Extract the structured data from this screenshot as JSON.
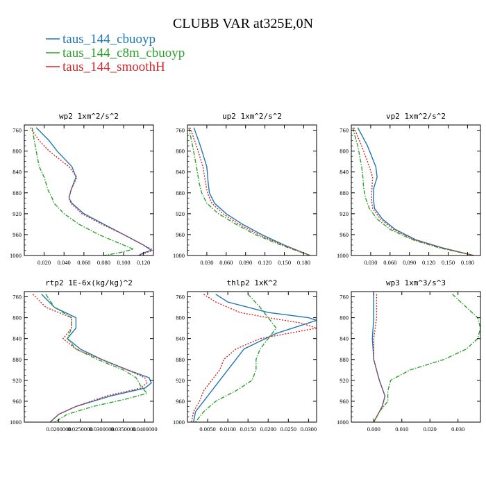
{
  "figure": {
    "title": "CLUBB VAR at325E,0N",
    "legend": [
      {
        "name": "taus_144_cbuoyp",
        "color": "#1f77b4",
        "dash": "solid"
      },
      {
        "name": "taus_144_c8m_cbuoyp",
        "color": "#2ca02c",
        "dash": "dashdot"
      },
      {
        "name": "taus_144_smoothH",
        "color": "#d62728",
        "dash": "dot"
      }
    ]
  },
  "chart_data": [
    {
      "type": "line",
      "title": "wp2  1xm^2/s^2",
      "xlim": [
        0.0,
        0.13
      ],
      "ylim": [
        750,
        1000
      ],
      "y_inverted": true,
      "xticks": [
        0.02,
        0.04,
        0.06,
        0.08,
        0.1,
        0.12
      ],
      "xticklabels": [
        "0.020",
        "0.040",
        "0.060",
        "0.080",
        "0.100",
        "0.120"
      ],
      "yticks": [
        760,
        800,
        840,
        880,
        920,
        960,
        1000
      ],
      "series": [
        {
          "name": "taus_144_cbuoyp",
          "y": [
            755,
            780,
            800,
            830,
            850,
            875,
            890,
            900,
            920,
            940,
            960,
            980,
            990,
            995,
            1000
          ],
          "x": [
            0.012,
            0.025,
            0.033,
            0.048,
            0.052,
            0.047,
            0.045,
            0.048,
            0.06,
            0.08,
            0.1,
            0.12,
            0.128,
            0.12,
            0.115
          ]
        },
        {
          "name": "taus_144_c8m_cbuoyp",
          "y": [
            755,
            780,
            800,
            830,
            850,
            875,
            890,
            900,
            920,
            940,
            960,
            980,
            988,
            995,
            1000
          ],
          "x": [
            0.008,
            0.01,
            0.012,
            0.015,
            0.02,
            0.024,
            0.028,
            0.03,
            0.04,
            0.055,
            0.075,
            0.1,
            0.11,
            0.095,
            0.08
          ]
        },
        {
          "name": "taus_144_smoothH",
          "y": [
            755,
            780,
            800,
            830,
            850,
            875,
            890,
            900,
            920,
            940,
            960,
            980,
            990,
            995,
            1000
          ],
          "x": [
            0.006,
            0.015,
            0.025,
            0.045,
            0.053,
            0.047,
            0.045,
            0.047,
            0.058,
            0.078,
            0.1,
            0.12,
            0.13,
            0.122,
            0.115
          ]
        }
      ]
    },
    {
      "type": "line",
      "title": "up2  1xm^2/s^2",
      "xlim": [
        0.0,
        0.2
      ],
      "ylim": [
        750,
        1000
      ],
      "y_inverted": true,
      "xticks": [
        0.03,
        0.06,
        0.09,
        0.12,
        0.15,
        0.18
      ],
      "xticklabels": [
        "0.030",
        "0.060",
        "0.090",
        "0.120",
        "0.150",
        "0.180"
      ],
      "yticks": [
        760,
        800,
        840,
        880,
        920,
        960,
        1000
      ],
      "series": [
        {
          "name": "taus_144_cbuoyp",
          "y": [
            755,
            790,
            830,
            860,
            880,
            900,
            920,
            940,
            960,
            980,
            1000
          ],
          "x": [
            0.01,
            0.02,
            0.03,
            0.032,
            0.034,
            0.042,
            0.06,
            0.085,
            0.115,
            0.15,
            0.19
          ]
        },
        {
          "name": "taus_144_c8m_cbuoyp",
          "y": [
            755,
            790,
            830,
            860,
            880,
            900,
            920,
            940,
            960,
            980,
            1000
          ],
          "x": [
            0.002,
            0.008,
            0.014,
            0.018,
            0.022,
            0.03,
            0.048,
            0.075,
            0.105,
            0.145,
            0.19
          ]
        },
        {
          "name": "taus_144_smoothH",
          "y": [
            755,
            790,
            830,
            860,
            880,
            900,
            920,
            940,
            960,
            980,
            1000
          ],
          "x": [
            0.004,
            0.014,
            0.024,
            0.028,
            0.031,
            0.038,
            0.055,
            0.08,
            0.11,
            0.148,
            0.19
          ]
        }
      ]
    },
    {
      "type": "line",
      "title": "vp2  1xm^2/s^2",
      "xlim": [
        0.0,
        0.2
      ],
      "ylim": [
        750,
        1000
      ],
      "y_inverted": true,
      "xticks": [
        0.03,
        0.06,
        0.09,
        0.12,
        0.15,
        0.18
      ],
      "xticklabels": [
        "0.030",
        "0.060",
        "0.090",
        "0.120",
        "0.150",
        "0.180"
      ],
      "yticks": [
        760,
        800,
        840,
        880,
        920,
        960,
        1000
      ],
      "series": [
        {
          "name": "taus_144_cbuoyp",
          "y": [
            755,
            790,
            830,
            850,
            870,
            890,
            910,
            930,
            950,
            970,
            985,
            1000
          ],
          "x": [
            0.01,
            0.025,
            0.038,
            0.04,
            0.035,
            0.034,
            0.036,
            0.048,
            0.068,
            0.1,
            0.14,
            0.19
          ]
        },
        {
          "name": "taus_144_c8m_cbuoyp",
          "y": [
            755,
            790,
            830,
            850,
            870,
            890,
            910,
            930,
            950,
            970,
            985,
            1000
          ],
          "x": [
            0.002,
            0.01,
            0.016,
            0.018,
            0.019,
            0.022,
            0.028,
            0.04,
            0.06,
            0.095,
            0.135,
            0.19
          ]
        },
        {
          "name": "taus_144_smoothH",
          "y": [
            755,
            790,
            830,
            850,
            870,
            890,
            910,
            930,
            950,
            970,
            985,
            1000
          ],
          "x": [
            0.004,
            0.016,
            0.028,
            0.033,
            0.032,
            0.031,
            0.033,
            0.045,
            0.065,
            0.098,
            0.138,
            0.19
          ]
        }
      ]
    },
    {
      "type": "line",
      "title": "rtp2  1E-6x(kg/kg)^2",
      "xlim": [
        0.012,
        0.042
      ],
      "ylim": [
        750,
        1000
      ],
      "y_inverted": true,
      "xticks": [
        0.02,
        0.025,
        0.03,
        0.035,
        0.04
      ],
      "xticklabels": [
        "0.0200000",
        "0.0250000",
        "0.0300000",
        "0.0350000",
        "0.0400000"
      ],
      "yticks": [
        760,
        800,
        840,
        880,
        920,
        960,
        1000
      ],
      "series": [
        {
          "name": "taus_144_cbuoyp",
          "y": [
            755,
            780,
            800,
            820,
            840,
            860,
            880,
            900,
            915,
            925,
            935,
            950,
            970,
            985,
            1000
          ],
          "x": [
            0.016,
            0.019,
            0.024,
            0.024,
            0.022,
            0.025,
            0.03,
            0.036,
            0.041,
            0.0415,
            0.04,
            0.032,
            0.024,
            0.02,
            0.018
          ]
        },
        {
          "name": "taus_144_c8m_cbuoyp",
          "y": [
            755,
            780,
            800,
            820,
            840,
            860,
            880,
            900,
            915,
            930,
            945,
            955,
            970,
            985,
            1000
          ],
          "x": [
            0.017,
            0.019,
            0.023,
            0.023,
            0.022,
            0.024,
            0.029,
            0.035,
            0.038,
            0.039,
            0.0405,
            0.036,
            0.028,
            0.022,
            0.019
          ]
        },
        {
          "name": "taus_144_smoothH",
          "y": [
            755,
            780,
            800,
            820,
            840,
            860,
            880,
            900,
            915,
            925,
            935,
            950,
            970,
            985,
            1000
          ],
          "x": [
            0.014,
            0.017,
            0.023,
            0.023,
            0.021,
            0.024,
            0.03,
            0.036,
            0.04,
            0.0405,
            0.039,
            0.031,
            0.024,
            0.02,
            0.018
          ]
        }
      ]
    },
    {
      "type": "line",
      "title": "thlp2  1xK^2",
      "xlim": [
        0.0,
        0.032
      ],
      "ylim": [
        750,
        1000
      ],
      "y_inverted": true,
      "xticks": [
        0.005,
        0.01,
        0.015,
        0.02,
        0.025,
        0.03
      ],
      "xticklabels": [
        "0.0050",
        "0.0100",
        "0.0150",
        "0.0200",
        "0.0250",
        "0.0300"
      ],
      "yticks": [
        760,
        800,
        840,
        880,
        920,
        960,
        1000
      ],
      "series": [
        {
          "name": "taus_144_cbuoyp",
          "y": [
            755,
            770,
            790,
            800,
            805,
            815,
            830,
            845,
            860,
            880,
            900,
            920,
            940,
            960,
            980,
            1000
          ],
          "x": [
            0.007,
            0.01,
            0.02,
            0.03,
            0.032,
            0.028,
            0.022,
            0.018,
            0.014,
            0.012,
            0.01,
            0.008,
            0.006,
            0.004,
            0.002,
            0.0015
          ]
        },
        {
          "name": "taus_144_c8m_cbuoyp",
          "y": [
            755,
            780,
            800,
            820,
            840,
            860,
            880,
            900,
            920,
            940,
            960,
            980,
            1000
          ],
          "x": [
            0.015,
            0.018,
            0.02,
            0.022,
            0.02,
            0.018,
            0.017,
            0.017,
            0.016,
            0.012,
            0.007,
            0.004,
            0.002
          ]
        },
        {
          "name": "taus_144_smoothH",
          "y": [
            755,
            770,
            790,
            800,
            810,
            820,
            830,
            840,
            860,
            880,
            900,
            920,
            940,
            960,
            980,
            1000
          ],
          "x": [
            0.004,
            0.007,
            0.013,
            0.02,
            0.028,
            0.032,
            0.025,
            0.018,
            0.012,
            0.009,
            0.008,
            0.006,
            0.004,
            0.003,
            0.0015,
            0.001
          ]
        }
      ]
    },
    {
      "type": "line",
      "title": "wp3  1xm^3/s^3",
      "xlim": [
        -0.008,
        0.038
      ],
      "ylim": [
        750,
        1000
      ],
      "y_inverted": true,
      "xticks": [
        0.0,
        0.01,
        0.02,
        0.03
      ],
      "xticklabels": [
        "0.000",
        "0.010",
        "0.020",
        "0.030"
      ],
      "yticks": [
        760,
        800,
        840,
        880,
        920,
        960,
        1000
      ],
      "series": [
        {
          "name": "taus_144_cbuoyp",
          "y": [
            755,
            800,
            840,
            880,
            920,
            950,
            970,
            990,
            1000
          ],
          "x": [
            0.0,
            0.0,
            -0.0005,
            0.0,
            0.002,
            0.004,
            0.003,
            0.001,
            0.0
          ]
        },
        {
          "name": "taus_144_c8m_cbuoyp",
          "y": [
            755,
            780,
            800,
            820,
            840,
            860,
            880,
            900,
            920,
            940,
            960,
            980,
            1000
          ],
          "x": [
            0.028,
            0.033,
            0.037,
            0.038,
            0.037,
            0.033,
            0.025,
            0.013,
            0.006,
            0.005,
            0.005,
            0.002,
            0.0
          ]
        },
        {
          "name": "taus_144_smoothH",
          "y": [
            755,
            800,
            840,
            880,
            920,
            950,
            970,
            990,
            1000
          ],
          "x": [
            0.001,
            0.001,
            0.0,
            0.0,
            0.002,
            0.004,
            0.003,
            0.001,
            0.0
          ]
        }
      ]
    }
  ]
}
